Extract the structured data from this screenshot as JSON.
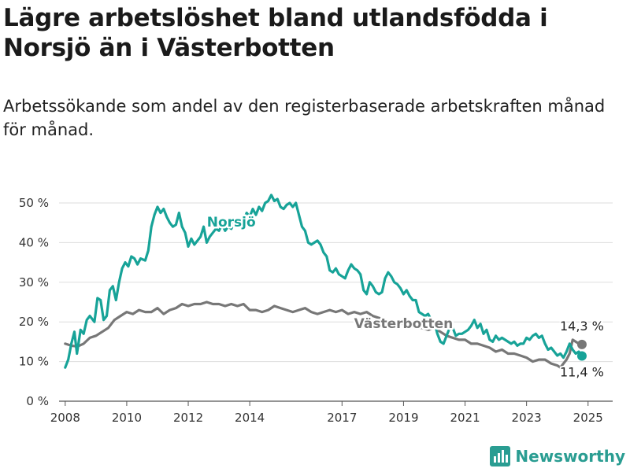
{
  "header": {
    "title": "Lägre arbetslöshet bland utlandsfödda i Norsjö än i Västerbotten",
    "subtitle": "Arbetssökande som andel av den registerbaserade arbetskraften månad för månad."
  },
  "branding": {
    "name": "Newsworthy",
    "icon": "bar-chart-logo-icon"
  },
  "colors": {
    "norsjo": "#17a398",
    "vasterbotten": "#777777",
    "grid": "#dddddd"
  },
  "chart_data": {
    "type": "line",
    "xlim": [
      2007.8,
      2025.8
    ],
    "ylim": [
      0,
      50
    ],
    "x_ticks": [
      2008,
      2010,
      2012,
      2014,
      2017,
      2019,
      2021,
      2023,
      2025
    ],
    "x_tick_labels": [
      "2008",
      "2010",
      "2012",
      "2014",
      "2017",
      "2019",
      "2021",
      "2023",
      "2025"
    ],
    "y_ticks": [
      0,
      10,
      20,
      30,
      40,
      50
    ],
    "y_tick_labels": [
      "0 %",
      "10 %",
      "20 %",
      "30 %",
      "40 %",
      "50 %"
    ],
    "grid": "horizontal",
    "series": [
      {
        "name": "Norsjö",
        "color": "#17a398",
        "end_label": "11,4 %",
        "points": [
          [
            2008.0,
            8.5
          ],
          [
            2008.1,
            10.5
          ],
          [
            2008.2,
            14.5
          ],
          [
            2008.3,
            17.5
          ],
          [
            2008.38,
            12.0
          ],
          [
            2008.5,
            18.0
          ],
          [
            2008.6,
            17.0
          ],
          [
            2008.7,
            20.5
          ],
          [
            2008.8,
            21.5
          ],
          [
            2008.95,
            20.0
          ],
          [
            2009.05,
            26.0
          ],
          [
            2009.15,
            25.5
          ],
          [
            2009.25,
            20.5
          ],
          [
            2009.35,
            21.5
          ],
          [
            2009.45,
            28.0
          ],
          [
            2009.55,
            29.0
          ],
          [
            2009.65,
            25.5
          ],
          [
            2009.75,
            30.0
          ],
          [
            2009.85,
            33.5
          ],
          [
            2009.95,
            35.0
          ],
          [
            2010.05,
            34.0
          ],
          [
            2010.15,
            36.5
          ],
          [
            2010.25,
            36.0
          ],
          [
            2010.35,
            34.5
          ],
          [
            2010.45,
            36.0
          ],
          [
            2010.6,
            35.5
          ],
          [
            2010.7,
            38.0
          ],
          [
            2010.8,
            44.0
          ],
          [
            2010.9,
            47.0
          ],
          [
            2011.0,
            49.0
          ],
          [
            2011.1,
            47.5
          ],
          [
            2011.2,
            48.5
          ],
          [
            2011.3,
            46.5
          ],
          [
            2011.4,
            45.0
          ],
          [
            2011.5,
            44.0
          ],
          [
            2011.6,
            44.5
          ],
          [
            2011.7,
            47.5
          ],
          [
            2011.8,
            44.0
          ],
          [
            2011.9,
            42.5
          ],
          [
            2012.0,
            39.0
          ],
          [
            2012.1,
            41.0
          ],
          [
            2012.2,
            39.5
          ],
          [
            2012.3,
            40.5
          ],
          [
            2012.4,
            41.5
          ],
          [
            2012.5,
            44.0
          ],
          [
            2012.6,
            40.0
          ],
          [
            2012.7,
            41.5
          ],
          [
            2012.8,
            42.5
          ],
          [
            2012.9,
            43.5
          ],
          [
            2013.0,
            43.0
          ],
          [
            2013.1,
            44.5
          ],
          [
            2013.2,
            43.0
          ],
          [
            2013.3,
            44.0
          ],
          [
            2013.4,
            43.5
          ],
          [
            2013.5,
            45.0
          ],
          [
            2013.6,
            44.0
          ],
          [
            2013.7,
            46.0
          ],
          [
            2013.8,
            45.5
          ],
          [
            2013.9,
            47.5
          ],
          [
            2014.0,
            46.5
          ],
          [
            2014.1,
            48.5
          ],
          [
            2014.2,
            47.0
          ],
          [
            2014.3,
            49.0
          ],
          [
            2014.4,
            48.0
          ],
          [
            2014.5,
            50.0
          ],
          [
            2014.6,
            50.5
          ],
          [
            2014.7,
            52.0
          ],
          [
            2014.8,
            50.5
          ],
          [
            2014.9,
            51.0
          ],
          [
            2015.0,
            49.0
          ],
          [
            2015.1,
            48.5
          ],
          [
            2015.2,
            49.5
          ],
          [
            2015.3,
            50.0
          ],
          [
            2015.4,
            49.0
          ],
          [
            2015.5,
            50.0
          ],
          [
            2015.6,
            47.0
          ],
          [
            2015.7,
            44.0
          ],
          [
            2015.8,
            43.0
          ],
          [
            2015.9,
            40.0
          ],
          [
            2016.0,
            39.5
          ],
          [
            2016.1,
            40.0
          ],
          [
            2016.2,
            40.5
          ],
          [
            2016.3,
            39.5
          ],
          [
            2016.4,
            37.5
          ],
          [
            2016.5,
            36.5
          ],
          [
            2016.6,
            33.0
          ],
          [
            2016.7,
            32.5
          ],
          [
            2016.8,
            33.5
          ],
          [
            2016.9,
            32.0
          ],
          [
            2017.0,
            31.5
          ],
          [
            2017.1,
            31.0
          ],
          [
            2017.2,
            33.0
          ],
          [
            2017.3,
            34.5
          ],
          [
            2017.4,
            33.5
          ],
          [
            2017.5,
            33.0
          ],
          [
            2017.6,
            32.0
          ],
          [
            2017.7,
            28.0
          ],
          [
            2017.8,
            27.0
          ],
          [
            2017.9,
            30.0
          ],
          [
            2018.0,
            29.0
          ],
          [
            2018.1,
            27.5
          ],
          [
            2018.2,
            27.0
          ],
          [
            2018.3,
            27.5
          ],
          [
            2018.4,
            31.0
          ],
          [
            2018.5,
            32.5
          ],
          [
            2018.6,
            31.5
          ],
          [
            2018.7,
            30.0
          ],
          [
            2018.8,
            29.5
          ],
          [
            2018.9,
            28.5
          ],
          [
            2019.0,
            27.0
          ],
          [
            2019.1,
            28.0
          ],
          [
            2019.2,
            26.5
          ],
          [
            2019.3,
            25.5
          ],
          [
            2019.4,
            25.5
          ],
          [
            2019.5,
            22.5
          ],
          [
            2019.6,
            22.0
          ],
          [
            2019.7,
            21.5
          ],
          [
            2019.8,
            22.0
          ],
          [
            2019.9,
            20.5
          ],
          [
            2020.0,
            20.0
          ],
          [
            2020.1,
            17.0
          ],
          [
            2020.2,
            15.0
          ],
          [
            2020.3,
            14.5
          ],
          [
            2020.4,
            16.5
          ],
          [
            2020.5,
            18.5
          ],
          [
            2020.6,
            18.5
          ],
          [
            2020.7,
            16.5
          ],
          [
            2020.8,
            17.0
          ],
          [
            2020.9,
            17.0
          ],
          [
            2021.0,
            17.5
          ],
          [
            2021.1,
            18.0
          ],
          [
            2021.2,
            19.0
          ],
          [
            2021.3,
            20.5
          ],
          [
            2021.4,
            18.5
          ],
          [
            2021.5,
            19.5
          ],
          [
            2021.6,
            17.0
          ],
          [
            2021.7,
            18.0
          ],
          [
            2021.8,
            15.5
          ],
          [
            2021.9,
            15.0
          ],
          [
            2022.0,
            16.5
          ],
          [
            2022.1,
            15.5
          ],
          [
            2022.2,
            16.0
          ],
          [
            2022.3,
            15.5
          ],
          [
            2022.4,
            15.0
          ],
          [
            2022.5,
            14.5
          ],
          [
            2022.6,
            15.0
          ],
          [
            2022.7,
            14.0
          ],
          [
            2022.8,
            14.5
          ],
          [
            2022.9,
            14.5
          ],
          [
            2023.0,
            16.0
          ],
          [
            2023.1,
            15.5
          ],
          [
            2023.2,
            16.5
          ],
          [
            2023.3,
            17.0
          ],
          [
            2023.4,
            16.0
          ],
          [
            2023.5,
            16.5
          ],
          [
            2023.6,
            14.5
          ],
          [
            2023.7,
            13.0
          ],
          [
            2023.8,
            13.5
          ],
          [
            2023.9,
            12.5
          ],
          [
            2024.0,
            11.5
          ],
          [
            2024.1,
            12.0
          ],
          [
            2024.2,
            11.0
          ],
          [
            2024.3,
            12.5
          ],
          [
            2024.4,
            14.5
          ],
          [
            2024.5,
            13.0
          ],
          [
            2024.6,
            12.0
          ],
          [
            2024.7,
            12.5
          ],
          [
            2024.8,
            11.4
          ]
        ]
      },
      {
        "name": "Västerbotten",
        "color": "#777777",
        "end_label": "14,3 %",
        "points": [
          [
            2008.0,
            14.5
          ],
          [
            2008.2,
            14.0
          ],
          [
            2008.4,
            13.8
          ],
          [
            2008.6,
            14.5
          ],
          [
            2008.8,
            16.0
          ],
          [
            2009.0,
            16.5
          ],
          [
            2009.2,
            17.5
          ],
          [
            2009.4,
            18.5
          ],
          [
            2009.6,
            20.5
          ],
          [
            2009.8,
            21.5
          ],
          [
            2010.0,
            22.5
          ],
          [
            2010.2,
            22.0
          ],
          [
            2010.4,
            23.0
          ],
          [
            2010.6,
            22.5
          ],
          [
            2010.8,
            22.5
          ],
          [
            2011.0,
            23.5
          ],
          [
            2011.2,
            22.0
          ],
          [
            2011.4,
            23.0
          ],
          [
            2011.6,
            23.5
          ],
          [
            2011.8,
            24.5
          ],
          [
            2012.0,
            24.0
          ],
          [
            2012.2,
            24.5
          ],
          [
            2012.4,
            24.5
          ],
          [
            2012.6,
            25.0
          ],
          [
            2012.8,
            24.5
          ],
          [
            2013.0,
            24.5
          ],
          [
            2013.2,
            24.0
          ],
          [
            2013.4,
            24.5
          ],
          [
            2013.6,
            24.0
          ],
          [
            2013.8,
            24.5
          ],
          [
            2014.0,
            23.0
          ],
          [
            2014.2,
            23.0
          ],
          [
            2014.4,
            22.5
          ],
          [
            2014.6,
            23.0
          ],
          [
            2014.8,
            24.0
          ],
          [
            2015.0,
            23.5
          ],
          [
            2015.2,
            23.0
          ],
          [
            2015.4,
            22.5
          ],
          [
            2015.6,
            23.0
          ],
          [
            2015.8,
            23.5
          ],
          [
            2016.0,
            22.5
          ],
          [
            2016.2,
            22.0
          ],
          [
            2016.4,
            22.5
          ],
          [
            2016.6,
            23.0
          ],
          [
            2016.8,
            22.5
          ],
          [
            2017.0,
            23.0
          ],
          [
            2017.2,
            22.0
          ],
          [
            2017.4,
            22.5
          ],
          [
            2017.6,
            22.0
          ],
          [
            2017.8,
            22.5
          ],
          [
            2018.0,
            21.5
          ],
          [
            2018.2,
            21.0
          ],
          [
            2018.4,
            20.5
          ],
          [
            2018.6,
            20.0
          ],
          [
            2018.8,
            19.5
          ],
          [
            2019.0,
            19.5
          ],
          [
            2019.2,
            19.0
          ],
          [
            2019.4,
            18.5
          ],
          [
            2019.6,
            18.5
          ],
          [
            2019.8,
            18.0
          ],
          [
            2020.0,
            18.5
          ],
          [
            2020.2,
            17.5
          ],
          [
            2020.4,
            16.5
          ],
          [
            2020.6,
            16.0
          ],
          [
            2020.8,
            15.5
          ],
          [
            2021.0,
            15.5
          ],
          [
            2021.2,
            14.5
          ],
          [
            2021.4,
            14.5
          ],
          [
            2021.6,
            14.0
          ],
          [
            2021.8,
            13.5
          ],
          [
            2022.0,
            12.5
          ],
          [
            2022.2,
            13.0
          ],
          [
            2022.4,
            12.0
          ],
          [
            2022.6,
            12.0
          ],
          [
            2022.8,
            11.5
          ],
          [
            2023.0,
            11.0
          ],
          [
            2023.2,
            10.0
          ],
          [
            2023.4,
            10.5
          ],
          [
            2023.6,
            10.5
          ],
          [
            2023.8,
            9.5
          ],
          [
            2024.0,
            9.0
          ],
          [
            2024.1,
            8.5
          ],
          [
            2024.2,
            9.5
          ],
          [
            2024.3,
            10.5
          ],
          [
            2024.4,
            12.0
          ],
          [
            2024.5,
            15.5
          ],
          [
            2024.6,
            15.0
          ],
          [
            2024.7,
            14.5
          ],
          [
            2024.8,
            14.3
          ]
        ]
      }
    ]
  }
}
